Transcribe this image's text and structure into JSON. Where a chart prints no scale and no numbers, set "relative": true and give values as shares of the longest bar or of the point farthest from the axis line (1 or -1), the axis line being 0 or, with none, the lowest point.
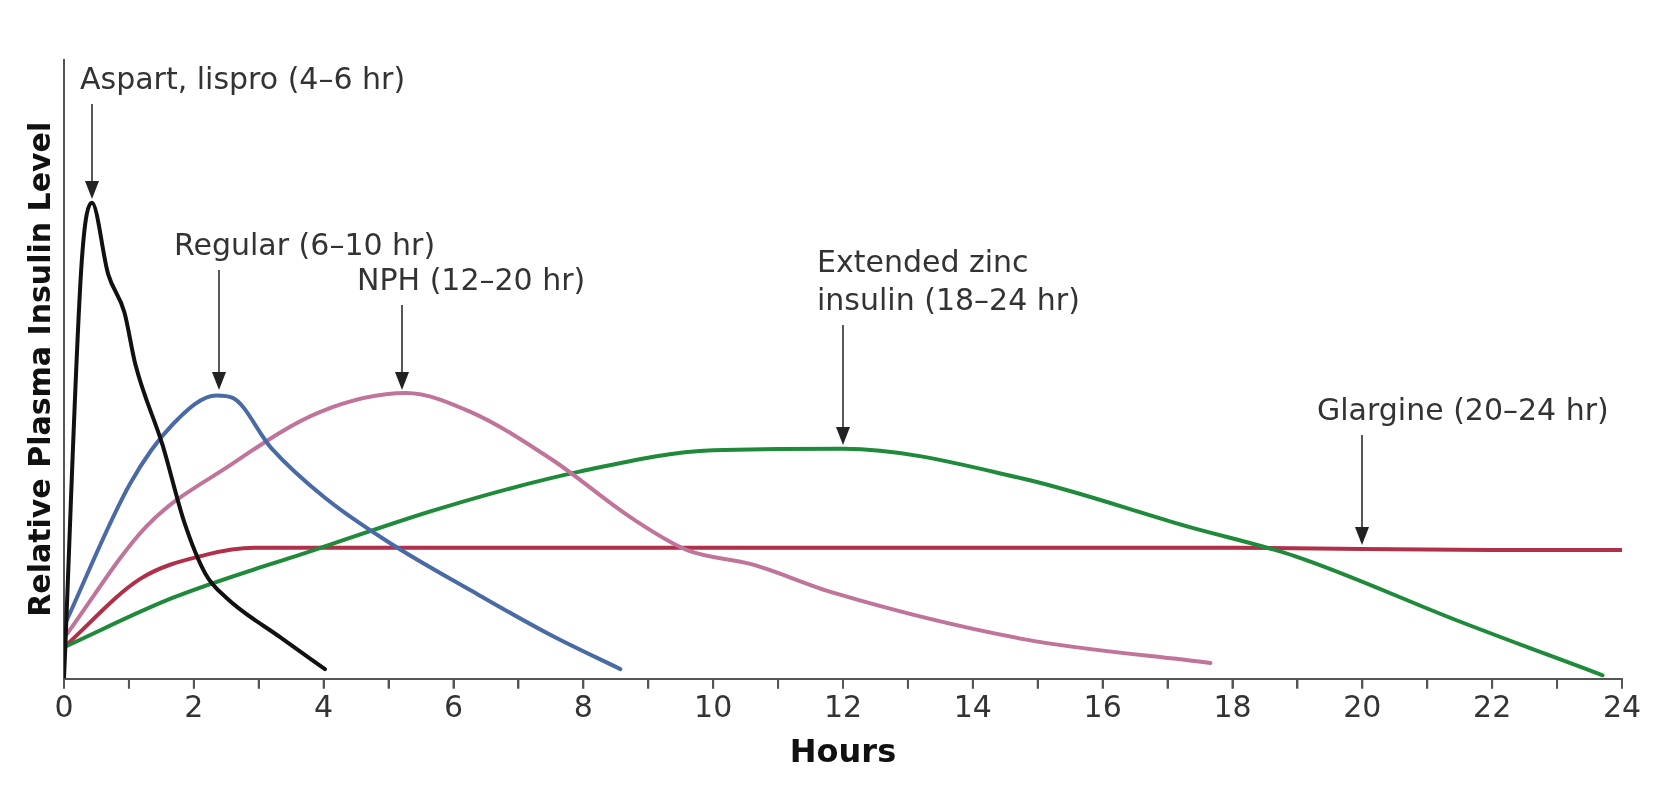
{
  "chart_data": {
    "type": "line",
    "relative": true,
    "xlabel": "Hours",
    "ylabel": "Relative Plasma Insulin Level",
    "xlim": [
      0,
      24
    ],
    "xticks": [
      0,
      {
        "value": 1,
        "label": null
      },
      2,
      {
        "value": 3,
        "label": null
      },
      4,
      {
        "value": 5,
        "label": null
      },
      6,
      {
        "value": 7,
        "label": null
      },
      8,
      {
        "value": 9,
        "label": null
      },
      10,
      {
        "value": 11,
        "label": null
      },
      12,
      {
        "value": 13,
        "label": null
      },
      14,
      {
        "value": 15,
        "label": null
      },
      16,
      {
        "value": 17,
        "label": null
      },
      18,
      {
        "value": 19,
        "label": null
      },
      20,
      {
        "value": 21,
        "label": null
      },
      22,
      {
        "value": 23,
        "label": null
      },
      24
    ],
    "grid": false,
    "legend": false,
    "marker": "none",
    "line_style": "solid",
    "series": [
      {
        "color": "#111111",
        "x": [
          0,
          0.27,
          0.43,
          0.68,
          0.93,
          1.1,
          1.52,
          1.85,
          2.18,
          2.5,
          3.35,
          4.02
        ],
        "values": [
          0,
          0.87,
          1,
          0.85,
          0.77,
          0.66,
          0.49,
          0.33,
          0.22,
          0.17,
          0.085,
          0.02
        ]
      },
      {
        "color": "#4a6aa5",
        "x": [
          0,
          1.02,
          1.68,
          2.35,
          2.6,
          3.19,
          4.02,
          5.02,
          6.27,
          7.52,
          8.57
        ],
        "values": [
          0.11,
          0.41,
          0.535,
          0.595,
          0.59,
          0.485,
          0.38,
          0.285,
          0.185,
          0.09,
          0.02
        ]
      },
      {
        "color": "#c0749a",
        "x": [
          0,
          1.27,
          2.52,
          3.94,
          5.27,
          6.27,
          7.52,
          8.77,
          9.6,
          10.6,
          11.86,
          14.78,
          17.66
        ],
        "values": [
          0.085,
          0.32,
          0.445,
          0.56,
          0.6,
          0.56,
          0.46,
          0.335,
          0.27,
          0.24,
          0.18,
          0.083,
          0.033
        ]
      },
      {
        "color": "#1e8a3a",
        "x": [
          0,
          1.68,
          3.85,
          5.85,
          7.94,
          10,
          12,
          14.78,
          17.3,
          18.97,
          21.5,
          23.7
        ],
        "values": [
          0.066,
          0.17,
          0.27,
          0.36,
          0.435,
          0.48,
          0.483,
          0.42,
          0.32,
          0.257,
          0.12,
          0.007
        ]
      },
      {
        "color": "#b0304a",
        "x": [
          0,
          1.18,
          2.18,
          2.94,
          6,
          12,
          18,
          22,
          24
        ],
        "values": [
          0.066,
          0.21,
          0.26,
          0.275,
          0.275,
          0.275,
          0.275,
          0.27,
          0.27
        ]
      }
    ],
    "annotations": [
      "Aspart, lispro (4–6 hr)",
      "Regular (6–10 hr)",
      "NPH (12–20 hr)",
      "Extended zinc\ninsulin (18–24 hr)",
      "Glargine (20–24 hr)"
    ]
  }
}
